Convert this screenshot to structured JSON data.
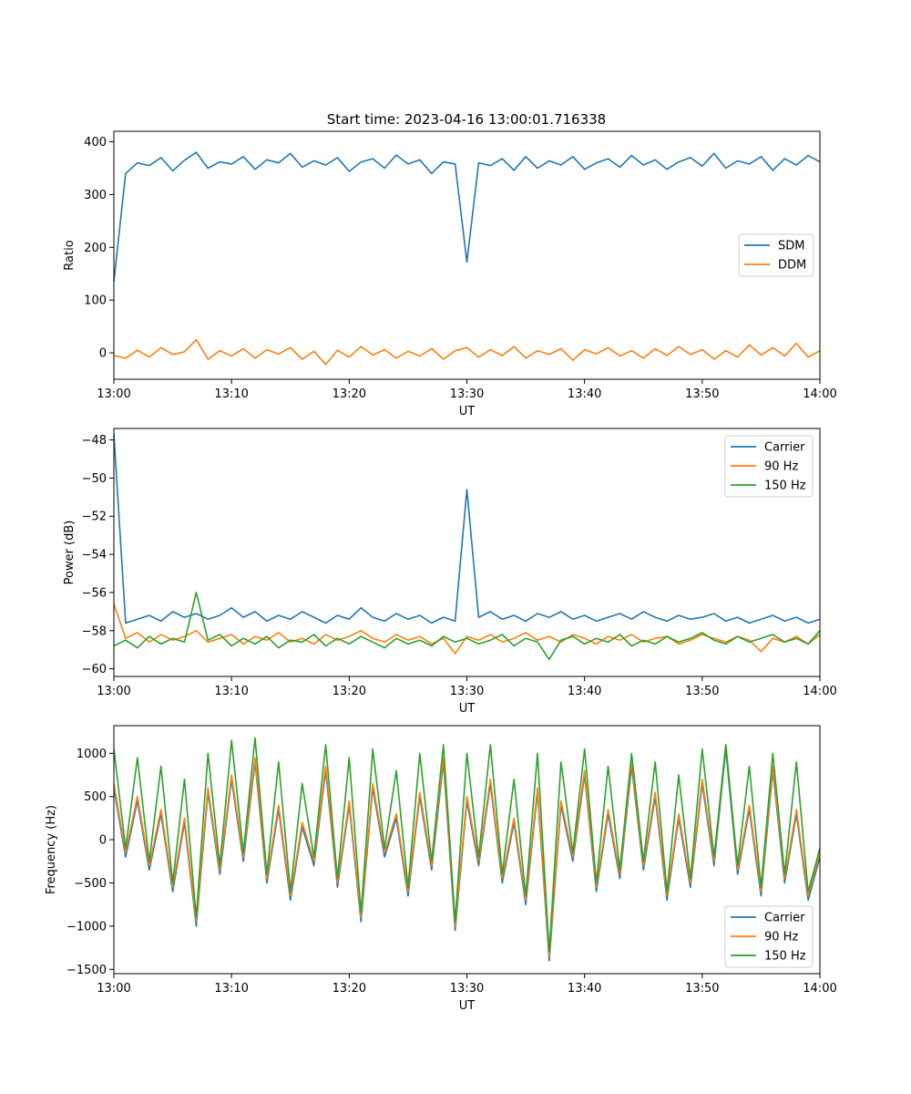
{
  "chart_data": [
    {
      "type": "line",
      "title": "Start time: 2023-04-16 13:00:01.716338",
      "xlabel": "UT",
      "ylabel": "Ratio",
      "xlim": [
        "13:00",
        "14:00"
      ],
      "ylim": [
        -50,
        420
      ],
      "xticks": [
        "13:00",
        "13:10",
        "13:20",
        "13:30",
        "13:40",
        "13:50",
        "14:00"
      ],
      "yticks": [
        "0",
        "100",
        "200",
        "300",
        "400"
      ],
      "ytick_values": [
        0,
        100,
        200,
        300,
        400
      ],
      "legend": "center-right",
      "series": [
        {
          "name": "SDM",
          "color": "#1f77b4",
          "values": [
            135,
            340,
            360,
            355,
            370,
            345,
            365,
            380,
            350,
            362,
            358,
            372,
            348,
            366,
            360,
            378,
            352,
            364,
            356,
            370,
            344,
            362,
            368,
            350,
            375,
            358,
            366,
            340,
            362,
            358,
            172,
            360,
            355,
            368,
            346,
            372,
            350,
            364,
            356,
            372,
            348,
            360,
            368,
            352,
            374,
            356,
            366,
            348,
            362,
            370,
            354,
            378,
            350,
            364,
            358,
            372,
            346,
            368,
            356,
            374,
            362
          ]
        },
        {
          "name": "DDM",
          "color": "#ff7f0e",
          "values": [
            -5,
            -10,
            5,
            -8,
            10,
            -3,
            2,
            25,
            -12,
            4,
            -6,
            8,
            -10,
            6,
            -2,
            10,
            -12,
            3,
            -22,
            5,
            -8,
            12,
            -4,
            6,
            -10,
            3,
            -6,
            8,
            -12,
            4,
            10,
            -8,
            6,
            -5,
            12,
            -10,
            4,
            -3,
            8,
            -14,
            6,
            -2,
            10,
            -6,
            4,
            -10,
            8,
            -5,
            12,
            -3,
            6,
            -12,
            4,
            -8,
            15,
            -4,
            10,
            -6,
            18,
            -8,
            4
          ]
        }
      ]
    },
    {
      "type": "line",
      "title": "",
      "xlabel": "UT",
      "ylabel": "Power (dB)",
      "xlim": [
        "13:00",
        "14:00"
      ],
      "ylim": [
        -60.4,
        -47.4
      ],
      "xticks": [
        "13:00",
        "13:10",
        "13:20",
        "13:30",
        "13:40",
        "13:50",
        "14:00"
      ],
      "yticks": [
        "−60",
        "−58",
        "−56",
        "−54",
        "−52",
        "−50",
        "−48"
      ],
      "ytick_values": [
        -60,
        -58,
        -56,
        -54,
        -52,
        -50,
        -48
      ],
      "legend": "top-right",
      "series": [
        {
          "name": "Carrier",
          "color": "#1f77b4",
          "values": [
            -47.7,
            -57.6,
            -57.4,
            -57.2,
            -57.5,
            -57.0,
            -57.3,
            -57.1,
            -57.4,
            -57.2,
            -56.8,
            -57.3,
            -57.0,
            -57.5,
            -57.2,
            -57.4,
            -57.0,
            -57.3,
            -57.6,
            -57.2,
            -57.4,
            -56.8,
            -57.3,
            -57.5,
            -57.1,
            -57.4,
            -57.2,
            -57.6,
            -57.3,
            -57.5,
            -50.6,
            -57.3,
            -57.0,
            -57.4,
            -57.2,
            -57.5,
            -57.1,
            -57.3,
            -57.0,
            -57.4,
            -57.2,
            -57.5,
            -57.3,
            -57.1,
            -57.4,
            -57.0,
            -57.3,
            -57.5,
            -57.2,
            -57.4,
            -57.3,
            -57.1,
            -57.5,
            -57.3,
            -57.6,
            -57.4,
            -57.2,
            -57.5,
            -57.3,
            -57.6,
            -57.4
          ]
        },
        {
          "name": "90 Hz",
          "color": "#ff7f0e",
          "values": [
            -56.6,
            -58.4,
            -58.1,
            -58.6,
            -58.2,
            -58.5,
            -58.3,
            -58.0,
            -58.6,
            -58.4,
            -58.2,
            -58.7,
            -58.3,
            -58.5,
            -58.1,
            -58.6,
            -58.4,
            -58.7,
            -58.2,
            -58.5,
            -58.3,
            -58.0,
            -58.4,
            -58.6,
            -58.2,
            -58.5,
            -58.3,
            -58.7,
            -58.4,
            -59.2,
            -58.3,
            -58.5,
            -58.2,
            -58.6,
            -58.4,
            -58.1,
            -58.5,
            -58.3,
            -58.6,
            -58.2,
            -58.4,
            -58.7,
            -58.3,
            -58.5,
            -58.2,
            -58.6,
            -58.4,
            -58.3,
            -58.7,
            -58.5,
            -58.2,
            -58.4,
            -58.6,
            -58.3,
            -58.5,
            -59.1,
            -58.4,
            -58.6,
            -58.3,
            -58.7,
            -58.2
          ]
        },
        {
          "name": "150 Hz",
          "color": "#2ca02c",
          "values": [
            -58.8,
            -58.5,
            -58.9,
            -58.3,
            -58.7,
            -58.4,
            -58.6,
            -56.0,
            -58.5,
            -58.2,
            -58.8,
            -58.4,
            -58.7,
            -58.3,
            -58.9,
            -58.5,
            -58.6,
            -58.2,
            -58.8,
            -58.4,
            -58.7,
            -58.3,
            -58.6,
            -58.9,
            -58.4,
            -58.7,
            -58.5,
            -58.8,
            -58.3,
            -58.6,
            -58.4,
            -58.7,
            -58.5,
            -58.2,
            -58.8,
            -58.4,
            -58.6,
            -59.5,
            -58.5,
            -58.3,
            -58.7,
            -58.4,
            -58.6,
            -58.2,
            -58.8,
            -58.5,
            -58.7,
            -58.3,
            -58.6,
            -58.4,
            -58.1,
            -58.5,
            -58.7,
            -58.3,
            -58.6,
            -58.4,
            -58.2,
            -58.6,
            -58.4,
            -58.7,
            -58.0
          ]
        }
      ]
    },
    {
      "type": "line",
      "title": "",
      "xlabel": "UT",
      "ylabel": "Frequency (Hz)",
      "xlim": [
        "13:00",
        "14:00"
      ],
      "ylim": [
        -1550,
        1320
      ],
      "xticks": [
        "13:00",
        "13:10",
        "13:20",
        "13:30",
        "13:40",
        "13:50",
        "14:00"
      ],
      "yticks": [
        "−1500",
        "−1000",
        "−500",
        "0",
        "500",
        "1000"
      ],
      "ytick_values": [
        -1500,
        -1000,
        -500,
        0,
        500,
        1000
      ],
      "legend": "bottom-right",
      "series": [
        {
          "name": "Carrier",
          "color": "#1f77b4",
          "values": [
            600,
            -200,
            450,
            -350,
            300,
            -600,
            200,
            -1000,
            550,
            -400,
            700,
            -250,
            900,
            -500,
            350,
            -700,
            150,
            -300,
            800,
            -550,
            400,
            -950,
            600,
            -200,
            250,
            -650,
            500,
            -350,
            900,
            -1050,
            450,
            -300,
            650,
            -500,
            200,
            -750,
            550,
            -1400,
            400,
            -250,
            750,
            -600,
            300,
            -450,
            850,
            -350,
            500,
            -700,
            250,
            -550,
            650,
            -300,
            1050,
            -400,
            350,
            -650,
            800,
            -500,
            300,
            -700,
            -200
          ]
        },
        {
          "name": "90 Hz",
          "color": "#ff7f0e",
          "values": [
            650,
            -150,
            500,
            -300,
            350,
            -550,
            250,
            -950,
            600,
            -350,
            750,
            -200,
            950,
            -450,
            400,
            -650,
            200,
            -250,
            850,
            -500,
            450,
            -900,
            650,
            -150,
            300,
            -600,
            550,
            -300,
            950,
            -1000,
            500,
            -250,
            700,
            -450,
            250,
            -700,
            600,
            -1350,
            450,
            -200,
            800,
            -550,
            350,
            -400,
            900,
            -300,
            550,
            -650,
            300,
            -500,
            700,
            -250,
            1100,
            -350,
            400,
            -600,
            850,
            -450,
            350,
            -650,
            -150
          ]
        },
        {
          "name": "150 Hz",
          "color": "#2ca02c",
          "values": [
            1050,
            -100,
            950,
            -250,
            850,
            -500,
            700,
            -900,
            1000,
            -300,
            1150,
            -150,
            1180,
            -400,
            900,
            -600,
            650,
            -200,
            1100,
            -450,
            950,
            -850,
            1050,
            -100,
            800,
            -550,
            1000,
            -250,
            1100,
            -950,
            1000,
            -200,
            1100,
            -400,
            700,
            -650,
            1000,
            -1300,
            900,
            -150,
            1050,
            -500,
            850,
            -350,
            1000,
            -250,
            900,
            -600,
            750,
            -450,
            1050,
            -200,
            1100,
            -300,
            850,
            -550,
            1000,
            -400,
            900,
            -600,
            -100
          ]
        }
      ]
    }
  ]
}
